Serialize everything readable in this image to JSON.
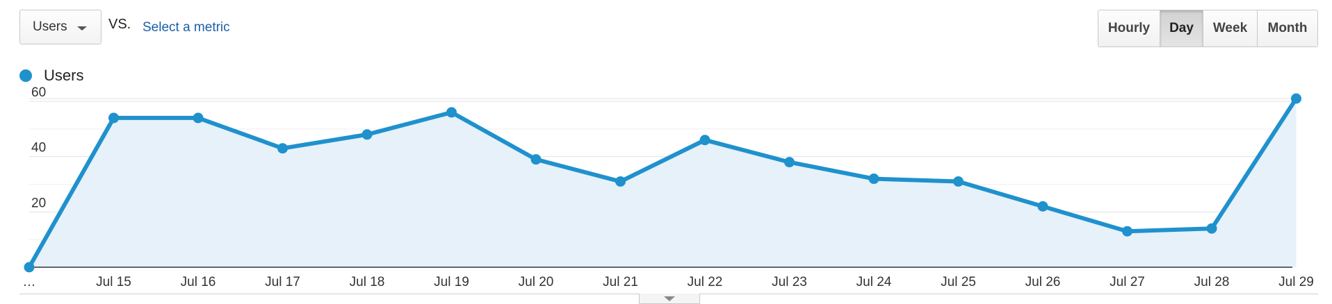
{
  "controls": {
    "primary_metric": "Users",
    "vs_label": "VS.",
    "select_metric_label": "Select a metric",
    "granularity": [
      {
        "label": "Hourly",
        "active": false
      },
      {
        "label": "Day",
        "active": true
      },
      {
        "label": "Week",
        "active": false
      },
      {
        "label": "Month",
        "active": false
      }
    ]
  },
  "legend": {
    "label": "Users",
    "color": "#1f91cd"
  },
  "chart_data": {
    "type": "area",
    "categories": [
      "…",
      "Jul 15",
      "Jul 16",
      "Jul 17",
      "Jul 18",
      "Jul 19",
      "Jul 20",
      "Jul 21",
      "Jul 22",
      "Jul 23",
      "Jul 24",
      "Jul 25",
      "Jul 26",
      "Jul 27",
      "Jul 28",
      "Jul 29"
    ],
    "series": [
      {
        "name": "Users",
        "color": "#1f91cd",
        "values": [
          0,
          54,
          54,
          43,
          48,
          56,
          39,
          31,
          46,
          38,
          32,
          31,
          22,
          13,
          14,
          61
        ]
      }
    ],
    "y_ticks": [
      20,
      40,
      60
    ],
    "ylim": [
      0,
      61
    ],
    "grid": true,
    "fill_color": "#e6f1f9",
    "legend_position": "top-left"
  }
}
